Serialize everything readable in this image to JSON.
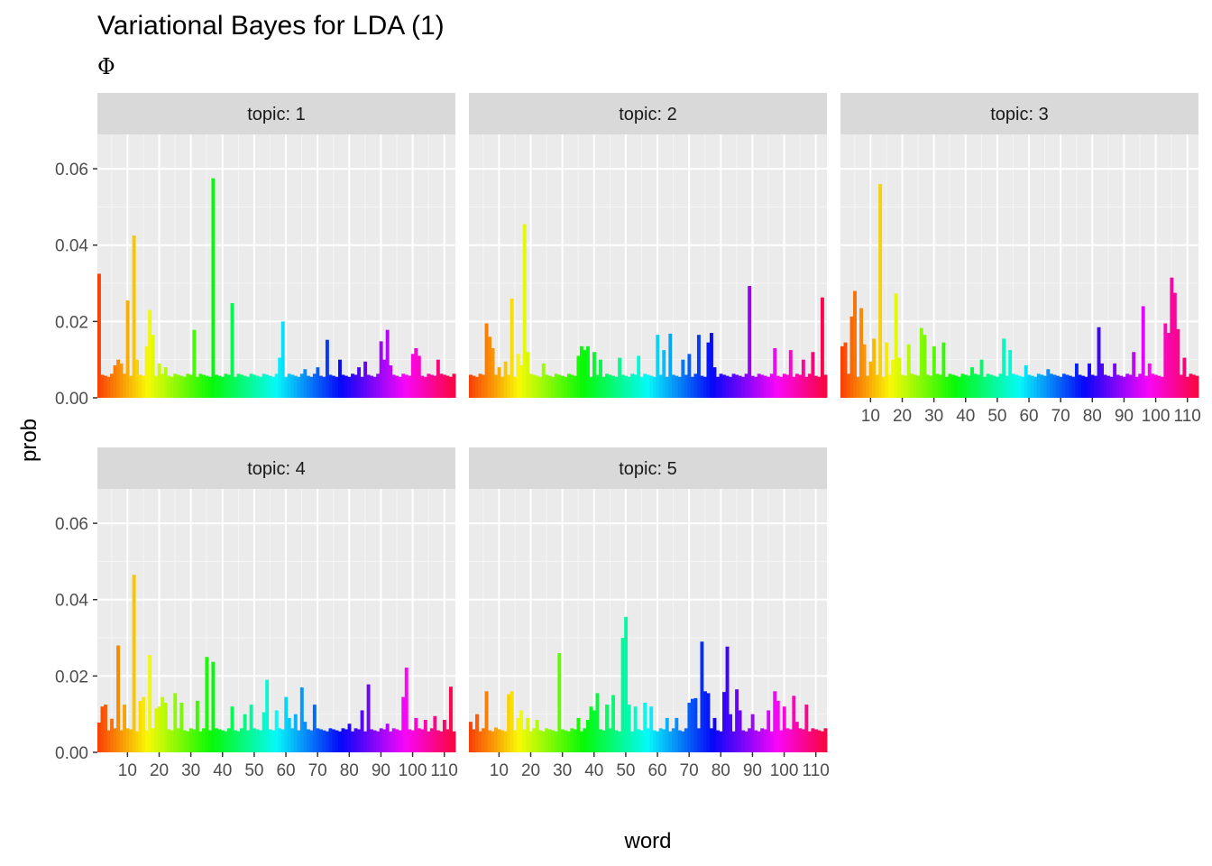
{
  "chart_data": {
    "type": "bar",
    "title": "Variational Bayes for LDA (1)",
    "subtitle": "Φ",
    "xlabel": "word",
    "ylabel": "prob",
    "xlim": [
      0.5,
      113.5
    ],
    "ylim": [
      0,
      0.069
    ],
    "x_ticks": [
      10,
      20,
      30,
      40,
      50,
      60,
      70,
      80,
      90,
      100,
      110
    ],
    "x_tick_labels": [
      "10",
      "20",
      "30",
      "40",
      "50",
      "60",
      "70",
      "80",
      "90",
      "100",
      "110"
    ],
    "y_ticks": [
      0,
      0.02,
      0.04,
      0.06
    ],
    "y_tick_labels": [
      "0.00",
      "0.02",
      "0.04",
      "0.06"
    ],
    "grid": true,
    "facet_prefix": "topic: ",
    "word_count": 113,
    "series": [
      {
        "name": "1",
        "peaks": [
          [
            1,
            0.0325
          ],
          [
            6,
            0.0085
          ],
          [
            7,
            0.01
          ],
          [
            8,
            0.009
          ],
          [
            10,
            0.0255
          ],
          [
            12,
            0.0425
          ],
          [
            13,
            0.01
          ],
          [
            16,
            0.0135
          ],
          [
            17,
            0.023
          ],
          [
            18,
            0.0165
          ],
          [
            20,
            0.009
          ],
          [
            22,
            0.008
          ],
          [
            31,
            0.0178
          ],
          [
            37,
            0.0575
          ],
          [
            43,
            0.0248
          ],
          [
            58,
            0.0105
          ],
          [
            59,
            0.02
          ],
          [
            66,
            0.0075
          ],
          [
            70,
            0.008
          ],
          [
            73,
            0.0152
          ],
          [
            77,
            0.01
          ],
          [
            83,
            0.008
          ],
          [
            85,
            0.0095
          ],
          [
            90,
            0.0148
          ],
          [
            91,
            0.01
          ],
          [
            92,
            0.0178
          ],
          [
            93,
            0.0085
          ],
          [
            100,
            0.0115
          ],
          [
            101,
            0.013
          ],
          [
            102,
            0.011
          ],
          [
            108,
            0.01
          ]
        ]
      },
      {
        "name": "2",
        "peaks": [
          [
            6,
            0.0195
          ],
          [
            7,
            0.016
          ],
          [
            8,
            0.013
          ],
          [
            10,
            0.008
          ],
          [
            12,
            0.0095
          ],
          [
            14,
            0.026
          ],
          [
            16,
            0.0115
          ],
          [
            17,
            0.0085
          ],
          [
            18,
            0.0455
          ],
          [
            19,
            0.012
          ],
          [
            24,
            0.009
          ],
          [
            35,
            0.011
          ],
          [
            36,
            0.0135
          ],
          [
            37,
            0.0125
          ],
          [
            38,
            0.0135
          ],
          [
            40,
            0.012
          ],
          [
            42,
            0.01
          ],
          [
            48,
            0.0105
          ],
          [
            54,
            0.011
          ],
          [
            60,
            0.0165
          ],
          [
            62,
            0.0125
          ],
          [
            64,
            0.0168
          ],
          [
            68,
            0.01
          ],
          [
            70,
            0.0115
          ],
          [
            73,
            0.0165
          ],
          [
            76,
            0.0145
          ],
          [
            77,
            0.017
          ],
          [
            78,
            0.008
          ],
          [
            89,
            0.0293
          ],
          [
            97,
            0.013
          ],
          [
            102,
            0.0125
          ],
          [
            106,
            0.01
          ],
          [
            109,
            0.012
          ],
          [
            112,
            0.0263
          ]
        ]
      },
      {
        "name": "3",
        "peaks": [
          [
            1,
            0.0135
          ],
          [
            2,
            0.0145
          ],
          [
            4,
            0.0213
          ],
          [
            5,
            0.028
          ],
          [
            7,
            0.0235
          ],
          [
            8,
            0.014
          ],
          [
            10,
            0.0095
          ],
          [
            11,
            0.0155
          ],
          [
            13,
            0.056
          ],
          [
            15,
            0.0145
          ],
          [
            17,
            0.01
          ],
          [
            18,
            0.0273
          ],
          [
            19,
            0.0105
          ],
          [
            22,
            0.014
          ],
          [
            26,
            0.0183
          ],
          [
            27,
            0.0165
          ],
          [
            30,
            0.0135
          ],
          [
            33,
            0.0145
          ],
          [
            42,
            0.008
          ],
          [
            45,
            0.01
          ],
          [
            52,
            0.0155
          ],
          [
            54,
            0.0125
          ],
          [
            59,
            0.0085
          ],
          [
            66,
            0.0075
          ],
          [
            75,
            0.009
          ],
          [
            79,
            0.009
          ],
          [
            82,
            0.0185
          ],
          [
            83,
            0.009
          ],
          [
            87,
            0.009
          ],
          [
            93,
            0.012
          ],
          [
            96,
            0.024
          ],
          [
            98,
            0.009
          ],
          [
            103,
            0.0195
          ],
          [
            104,
            0.017
          ],
          [
            105,
            0.0315
          ],
          [
            106,
            0.0275
          ],
          [
            107,
            0.018
          ],
          [
            109,
            0.0105
          ]
        ]
      },
      {
        "name": "4",
        "peaks": [
          [
            1,
            0.0078
          ],
          [
            2,
            0.012
          ],
          [
            3,
            0.0125
          ],
          [
            5,
            0.0088
          ],
          [
            7,
            0.028
          ],
          [
            9,
            0.0125
          ],
          [
            12,
            0.0465
          ],
          [
            14,
            0.0135
          ],
          [
            15,
            0.0145
          ],
          [
            17,
            0.0255
          ],
          [
            19,
            0.0115
          ],
          [
            20,
            0.012
          ],
          [
            21,
            0.0145
          ],
          [
            22,
            0.013
          ],
          [
            25,
            0.0155
          ],
          [
            27,
            0.013
          ],
          [
            32,
            0.0135
          ],
          [
            35,
            0.025
          ],
          [
            37,
            0.0237
          ],
          [
            43,
            0.012
          ],
          [
            47,
            0.01
          ],
          [
            49,
            0.0125
          ],
          [
            53,
            0.0105
          ],
          [
            54,
            0.019
          ],
          [
            57,
            0.011
          ],
          [
            60,
            0.0145
          ],
          [
            61,
            0.009
          ],
          [
            63,
            0.01
          ],
          [
            65,
            0.017
          ],
          [
            66,
            0.008
          ],
          [
            69,
            0.0125
          ],
          [
            80,
            0.0075
          ],
          [
            84,
            0.011
          ],
          [
            86,
            0.0178
          ],
          [
            92,
            0.0075
          ],
          [
            97,
            0.0145
          ],
          [
            98,
            0.0222
          ],
          [
            101,
            0.009
          ],
          [
            104,
            0.0085
          ],
          [
            107,
            0.0095
          ],
          [
            110,
            0.0085
          ],
          [
            112,
            0.0172
          ]
        ]
      },
      {
        "name": "5",
        "peaks": [
          [
            1,
            0.008
          ],
          [
            3,
            0.01
          ],
          [
            6,
            0.016
          ],
          [
            9,
            0.0065
          ],
          [
            13,
            0.0152
          ],
          [
            14,
            0.016
          ],
          [
            16,
            0.009
          ],
          [
            17,
            0.011
          ],
          [
            19,
            0.009
          ],
          [
            22,
            0.0085
          ],
          [
            29,
            0.026
          ],
          [
            35,
            0.009
          ],
          [
            38,
            0.0085
          ],
          [
            39,
            0.012
          ],
          [
            40,
            0.011
          ],
          [
            41,
            0.0155
          ],
          [
            44,
            0.0125
          ],
          [
            46,
            0.015
          ],
          [
            49,
            0.03
          ],
          [
            50,
            0.0355
          ],
          [
            51,
            0.0125
          ],
          [
            53,
            0.012
          ],
          [
            56,
            0.013
          ],
          [
            58,
            0.012
          ],
          [
            63,
            0.009
          ],
          [
            66,
            0.009
          ],
          [
            70,
            0.013
          ],
          [
            71,
            0.014
          ],
          [
            72,
            0.0142
          ],
          [
            74,
            0.029
          ],
          [
            75,
            0.016
          ],
          [
            76,
            0.0155
          ],
          [
            78,
            0.009
          ],
          [
            81,
            0.0158
          ],
          [
            82,
            0.0277
          ],
          [
            83,
            0.01
          ],
          [
            85,
            0.0165
          ],
          [
            86,
            0.011
          ],
          [
            90,
            0.01
          ],
          [
            95,
            0.011
          ],
          [
            97,
            0.016
          ],
          [
            98,
            0.0135
          ],
          [
            100,
            0.012
          ],
          [
            103,
            0.0148
          ],
          [
            104,
            0.008
          ],
          [
            107,
            0.0125
          ]
        ]
      }
    ]
  }
}
